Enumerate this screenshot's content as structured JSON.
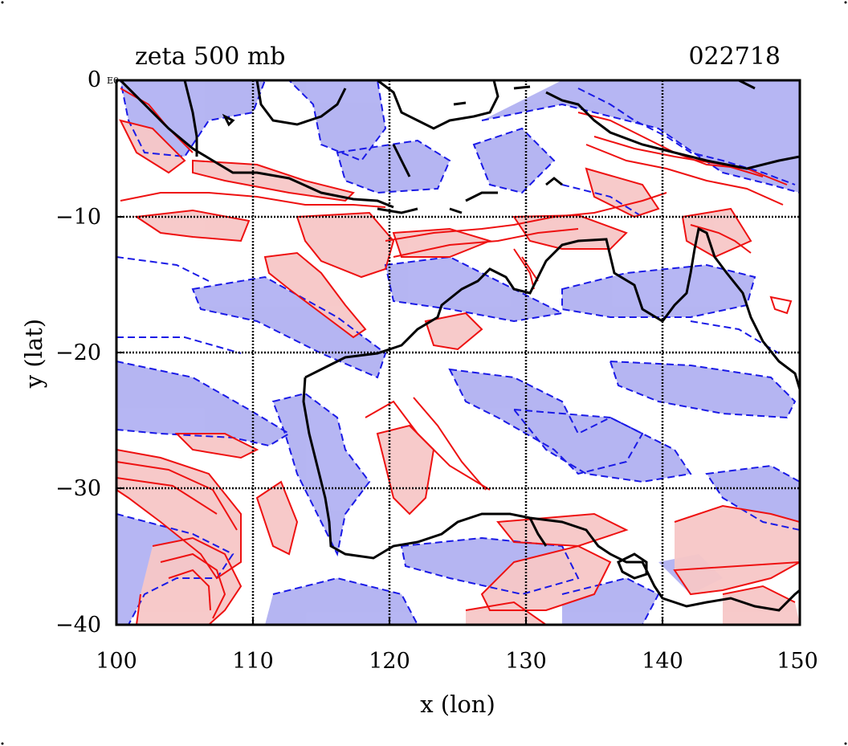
{
  "title_left": "zeta 500 mb",
  "title_right": "022718",
  "corner_label": "E0",
  "xlabel": "x (lon)",
  "ylabel": "y (lat)",
  "x_ticks": [
    "100",
    "110",
    "120",
    "130",
    "140",
    "150"
  ],
  "y_ticks": [
    "0",
    "−10",
    "−20",
    "−30",
    "−40"
  ],
  "axes": {
    "xlim": [
      100,
      150
    ],
    "ylim": [
      -40,
      0
    ],
    "grid": true
  },
  "colors": {
    "positive_fill": "#f7c7c7",
    "positive_line": "#ee1111",
    "negative_fill": "#b2b2f2",
    "negative_line": "#1a1ae6",
    "coast": "#000000",
    "grid": "#000000"
  }
}
